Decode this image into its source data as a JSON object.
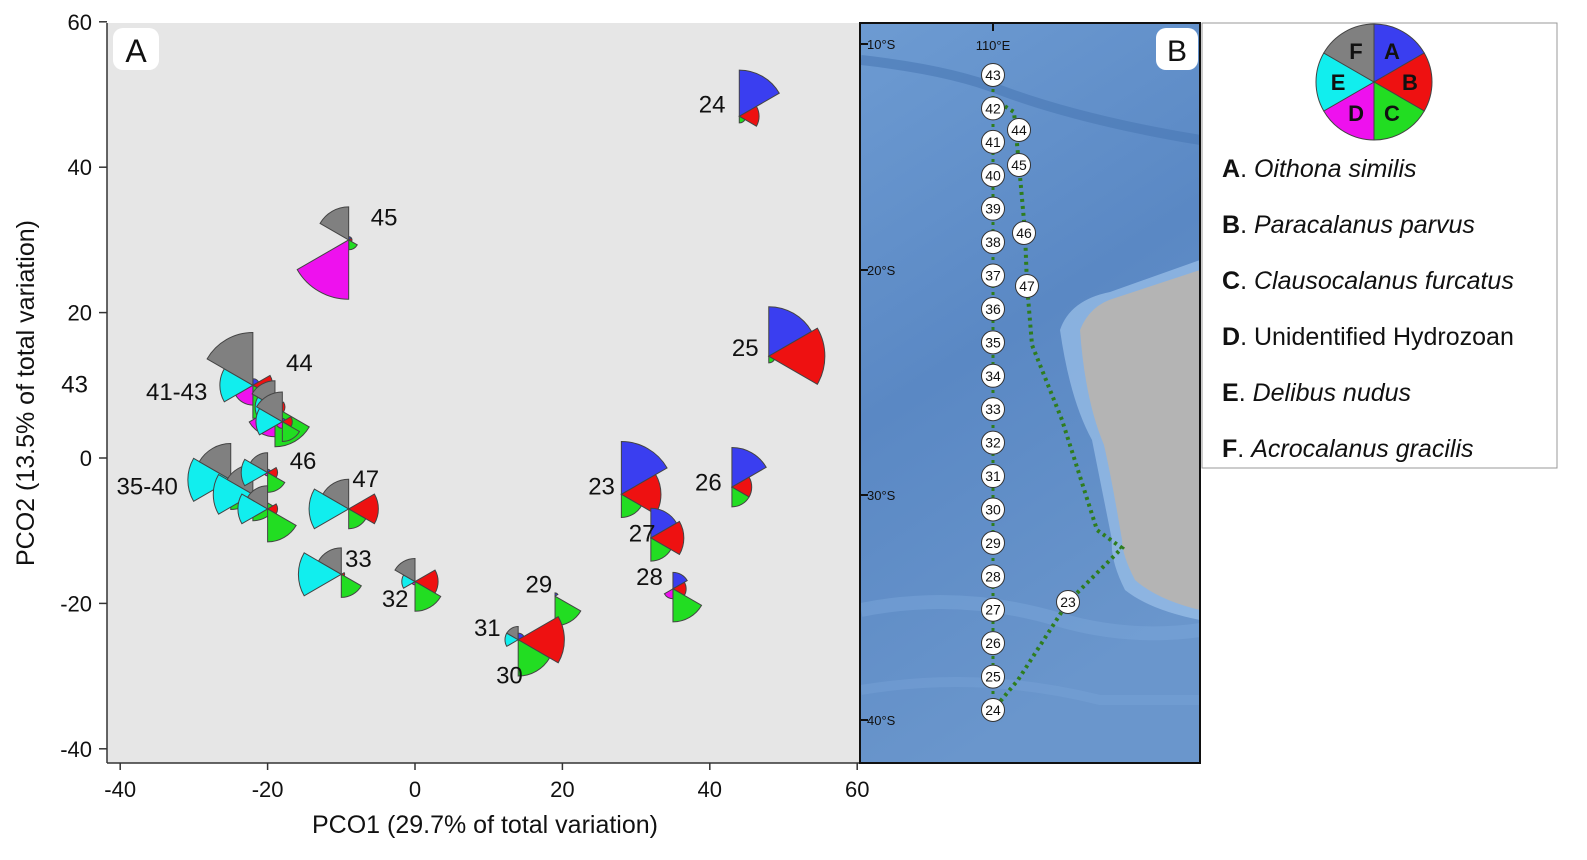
{
  "colors": {
    "A": "#3a3ef0",
    "B": "#ee1111",
    "C": "#22dd22",
    "D": "#ee11ee",
    "E": "#11eeee",
    "F": "#808080",
    "panel_bg": "#e6e6e6",
    "track": "#2e7d1e",
    "land": "#b4b4b4",
    "ocean": "#5f8fc8"
  },
  "chart_data": {
    "type": "scatter",
    "xlabel": "PCO1 (29.7% of total variation)",
    "ylabel": "PCO2 (13.5% of total variation)",
    "xlim": [
      -42,
      60
    ],
    "ylim": [
      -42,
      60
    ],
    "xticks": [
      "-40",
      "-20",
      "0",
      "20",
      "40",
      "60"
    ],
    "yticks": [
      "-40",
      "-20",
      "0",
      "20",
      "40",
      "60"
    ],
    "xtick_values": [
      -40,
      -20,
      0,
      20,
      40,
      60
    ],
    "ytick_values": [
      -40,
      -20,
      0,
      20,
      40,
      60
    ],
    "panel_label": "A",
    "point_labels": [
      {
        "text": "24",
        "x": 38.5,
        "y": 47.5
      },
      {
        "text": "45",
        "x": -6,
        "y": 32
      },
      {
        "text": "25",
        "x": 43,
        "y": 14
      },
      {
        "text": "44",
        "x": -17.5,
        "y": 12
      },
      {
        "text": "43",
        "x": -48,
        "y": 9
      },
      {
        "text": "41-43",
        "x": -36.5,
        "y": 8
      },
      {
        "text": "46",
        "x": -17,
        "y": -1.5
      },
      {
        "text": "35-40",
        "x": -40.5,
        "y": -5
      },
      {
        "text": "47",
        "x": -8.5,
        "y": -4
      },
      {
        "text": "23",
        "x": 23.5,
        "y": -5
      },
      {
        "text": "26",
        "x": 38,
        "y": -4.5
      },
      {
        "text": "27",
        "x": 29,
        "y": -11.5
      },
      {
        "text": "33",
        "x": -9.5,
        "y": -15
      },
      {
        "text": "32",
        "x": -4.5,
        "y": -20.5
      },
      {
        "text": "28",
        "x": 30,
        "y": -17.5
      },
      {
        "text": "29",
        "x": 15,
        "y": -18.5
      },
      {
        "text": "31",
        "x": 8,
        "y": -24.5
      },
      {
        "text": "30",
        "x": 11,
        "y": -31
      }
    ],
    "segment_order": [
      "A",
      "B",
      "C",
      "D",
      "E",
      "F"
    ],
    "segment_note": "each glyph is a 6-ray star; ray k sweeps 60deg starting at 12 o'clock clockwise (A,B,C,D,E,F); length proportional to abundance",
    "stations": [
      {
        "id": "24",
        "x": 44,
        "y": 47,
        "r": [
          14,
          6,
          2,
          0,
          0,
          0
        ]
      },
      {
        "id": "45",
        "x": -9,
        "y": 30,
        "r": [
          1,
          1,
          3,
          18,
          0,
          10
        ]
      },
      {
        "id": "25",
        "x": 48,
        "y": 14,
        "r": [
          15,
          17,
          2,
          0,
          0,
          0
        ]
      },
      {
        "id": "41-43",
        "x": -22,
        "y": 10,
        "r": [
          2,
          6,
          10,
          6,
          10,
          16
        ]
      },
      {
        "id": "41-43b",
        "x": -19,
        "y": 7,
        "r": [
          1,
          3,
          12,
          9,
          6,
          8
        ]
      },
      {
        "id": "44",
        "x": -18,
        "y": 5,
        "r": [
          1,
          3,
          6,
          2,
          8,
          9
        ]
      },
      {
        "id": "35-40",
        "x": -25,
        "y": -3,
        "r": [
          0,
          3,
          9,
          0,
          13,
          11
        ]
      },
      {
        "id": "35-40b",
        "x": -22,
        "y": -5,
        "r": [
          0,
          2,
          8,
          0,
          12,
          9
        ]
      },
      {
        "id": "35-40c",
        "x": -20,
        "y": -7,
        "r": [
          0,
          3,
          10,
          0,
          9,
          7
        ]
      },
      {
        "id": "46",
        "x": -20,
        "y": -2,
        "r": [
          1,
          3,
          6,
          1,
          8,
          6
        ]
      },
      {
        "id": "47",
        "x": -9,
        "y": -7,
        "r": [
          0,
          9,
          6,
          0,
          12,
          9
        ]
      },
      {
        "id": "23",
        "x": 28,
        "y": -5,
        "r": [
          16,
          12,
          7,
          0,
          0,
          0
        ]
      },
      {
        "id": "26",
        "x": 43,
        "y": -4,
        "r": [
          12,
          6,
          6,
          0,
          0,
          0
        ]
      },
      {
        "id": "27",
        "x": 32,
        "y": -11,
        "r": [
          9,
          10,
          7,
          0,
          0,
          0
        ]
      },
      {
        "id": "33",
        "x": -10,
        "y": -16,
        "r": [
          0,
          1,
          7,
          0,
          13,
          8
        ]
      },
      {
        "id": "32",
        "x": 0,
        "y": -17,
        "r": [
          0,
          7,
          9,
          1,
          4,
          7
        ]
      },
      {
        "id": "28",
        "x": 35,
        "y": -18,
        "r": [
          5,
          4,
          10,
          3,
          0,
          0
        ]
      },
      {
        "id": "29",
        "x": 19,
        "y": -19,
        "r": [
          1,
          0,
          9,
          0,
          0,
          0
        ]
      },
      {
        "id": "31",
        "x": 14,
        "y": -25,
        "r": [
          0,
          0,
          0,
          0,
          4,
          4
        ]
      },
      {
        "id": "30",
        "x": 14,
        "y": -25,
        "r": [
          2,
          14,
          11,
          0,
          0,
          0
        ]
      }
    ]
  },
  "map": {
    "panel_label": "B",
    "lat_labels": [
      "10°S",
      "20°S",
      "30°S",
      "40°S"
    ],
    "lon_label": "110°E",
    "stations_straight": [
      "43",
      "42",
      "41",
      "40",
      "39",
      "38",
      "37",
      "36",
      "35",
      "34",
      "33",
      "32",
      "31",
      "30",
      "29",
      "28",
      "27",
      "26",
      "25",
      "24"
    ],
    "stations_offshore": [
      "44",
      "45",
      "46",
      "47"
    ],
    "station_23": "23"
  },
  "legend": {
    "key_slices": [
      "A",
      "B",
      "C",
      "D",
      "E",
      "F"
    ],
    "entries": [
      {
        "letter": "A",
        "name": "Oithona similis",
        "italic": true
      },
      {
        "letter": "B",
        "name": "Paracalanus parvus",
        "italic": true
      },
      {
        "letter": "C",
        "name": "Clausocalanus furcatus",
        "italic": true
      },
      {
        "letter": "D",
        "name": "Unidentified Hydrozoan",
        "italic": false
      },
      {
        "letter": "E",
        "name": "Delibus nudus",
        "italic": true
      },
      {
        "letter": "F",
        "name": "Acrocalanus gracilis",
        "italic": true
      }
    ]
  }
}
